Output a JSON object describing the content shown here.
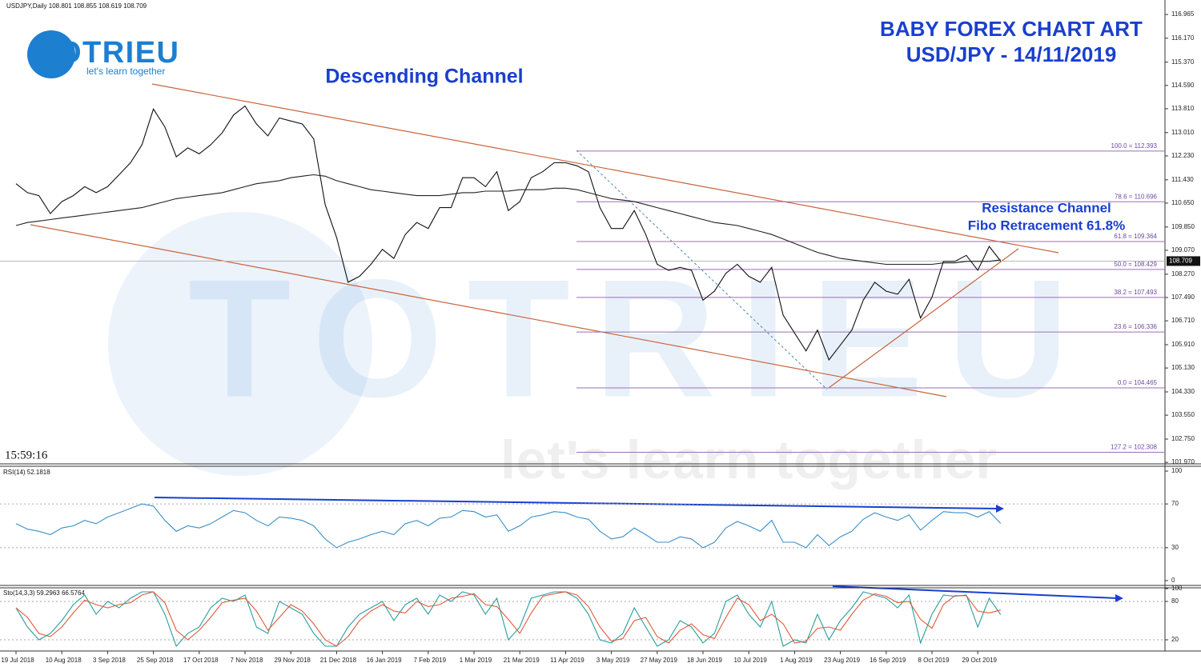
{
  "chart_data": [
    {
      "type": "line",
      "header": "USDJPY,Daily  108.801 108.855 108.619 108.709",
      "clock": "15:59:16",
      "title": "BABY FOREX CHART ART",
      "subtitle": "USD/JPY - 14/11/2019",
      "annotations": [
        "Descending Channel",
        "Resistance Channel",
        "Fibo Retracement 61.8%"
      ],
      "logo": {
        "brand": "TOTRIEU",
        "slogan": "let's learn together"
      },
      "watermark": {
        "brand": "TOTRIEU",
        "slogan": "let's learn together"
      },
      "categories": [
        "19 Jul 2018",
        null,
        null,
        null,
        "10 Aug 2018",
        null,
        null,
        null,
        "3 Sep 2018",
        null,
        null,
        null,
        "25 Sep 2018",
        null,
        null,
        null,
        "17 Oct 2018",
        null,
        null,
        null,
        "7 Nov 2018",
        null,
        null,
        null,
        "29 Nov 2018",
        null,
        null,
        null,
        "21 Dec 2018",
        null,
        null,
        null,
        "16 Jan 2019",
        null,
        null,
        null,
        "7 Feb 2019",
        null,
        null,
        null,
        "1 Mar 2019",
        null,
        null,
        null,
        "21 Mar 2019",
        null,
        null,
        null,
        "11 Apr 2019",
        null,
        null,
        null,
        "3 May 2019",
        null,
        null,
        null,
        "27 May 2019",
        null,
        null,
        null,
        "18 Jun 2019",
        null,
        null,
        null,
        "10 Jul 2019",
        null,
        null,
        null,
        "1 Aug 2019",
        null,
        null,
        null,
        "23 Aug 2019",
        null,
        null,
        null,
        "16 Sep 2019",
        null,
        null,
        null,
        "8 Oct 2019",
        null,
        null,
        null,
        "29 Oct 2019",
        null,
        null
      ],
      "series": [
        {
          "color": "#111111",
          "values": [
            111.3,
            111.0,
            110.9,
            110.3,
            110.7,
            110.9,
            111.2,
            111.0,
            111.2,
            111.6,
            112.0,
            112.6,
            113.8,
            113.2,
            112.2,
            112.5,
            112.3,
            112.6,
            113.0,
            113.6,
            113.9,
            113.3,
            112.9,
            113.5,
            113.4,
            113.3,
            112.8,
            110.6,
            109.5,
            108.0,
            108.2,
            108.6,
            109.1,
            108.8,
            109.6,
            110.0,
            109.8,
            110.5,
            110.5,
            111.5,
            111.5,
            111.2,
            111.7,
            110.4,
            110.7,
            111.5,
            111.7,
            112.0,
            112.0,
            111.9,
            111.7,
            110.5,
            109.8,
            109.8,
            110.4,
            109.6,
            108.6,
            108.4,
            108.5,
            108.4,
            107.4,
            107.7,
            108.3,
            108.6,
            108.2,
            108.0,
            108.5,
            106.9,
            106.3,
            105.7,
            106.4,
            105.4,
            105.9,
            106.4,
            107.4,
            108.0,
            107.7,
            107.6,
            108.1,
            106.8,
            107.5,
            108.7,
            108.7,
            108.9,
            108.4,
            109.2,
            108.709
          ]
        },
        {
          "color": "#222222",
          "values": [
            109.9,
            110.0,
            110.05,
            110.1,
            110.15,
            110.2,
            110.25,
            110.3,
            110.35,
            110.4,
            110.45,
            110.5,
            110.6,
            110.7,
            110.8,
            110.85,
            110.9,
            110.95,
            111.0,
            111.1,
            111.2,
            111.3,
            111.35,
            111.4,
            111.5,
            111.55,
            111.6,
            111.55,
            111.4,
            111.3,
            111.2,
            111.1,
            111.05,
            111.0,
            110.95,
            110.9,
            110.9,
            110.9,
            110.95,
            111.0,
            111.0,
            111.05,
            111.05,
            111.05,
            111.1,
            111.1,
            111.1,
            111.15,
            111.15,
            111.1,
            111.0,
            110.9,
            110.8,
            110.75,
            110.7,
            110.6,
            110.5,
            110.4,
            110.3,
            110.2,
            110.1,
            110.0,
            109.95,
            109.9,
            109.8,
            109.7,
            109.6,
            109.45,
            109.3,
            109.15,
            109.0,
            108.9,
            108.8,
            108.75,
            108.7,
            108.65,
            108.6,
            108.6,
            108.6,
            108.6,
            108.6,
            108.65,
            108.65,
            108.7,
            108.7,
            108.7,
            108.75
          ]
        }
      ],
      "last": 108.709,
      "fibo": [
        {
          "value": 112.393,
          "label": "100.0 = 112.393"
        },
        {
          "value": 110.696,
          "label": "78.6 = 110.696"
        },
        {
          "value": 109.364,
          "label": "61.8 = 109.364"
        },
        {
          "value": 108.429,
          "label": "50.0 = 108.429"
        },
        {
          "value": 107.493,
          "label": "38.2 = 107.493"
        },
        {
          "value": 106.336,
          "label": "23.6 = 106.336"
        },
        {
          "value": 104.465,
          "label": "0.0 = 104.465"
        },
        {
          "value": 102.308,
          "label": "127.2 = 102.308"
        }
      ],
      "ylim": [
        101.92,
        117.45
      ],
      "yticks": [
        116.965,
        {
          "value": 116.17,
          "label": "116.170"
        },
        {
          "value": 115.37,
          "label": "115.370"
        },
        {
          "value": 114.59,
          "label": "114.590"
        },
        {
          "value": 113.81,
          "label": "113.810"
        },
        {
          "value": 113.01,
          "label": "113.010"
        },
        {
          "value": 112.23,
          "label": "112.230"
        },
        {
          "value": 111.43,
          "label": "111.430"
        },
        {
          "value": 110.65,
          "label": "110.650"
        },
        {
          "value": 109.85,
          "label": "109.850"
        },
        {
          "value": 109.07,
          "label": "109.070"
        },
        {
          "value": 108.27,
          "label": "108.270"
        },
        {
          "value": 107.49,
          "label": "107.490"
        },
        {
          "value": 106.71,
          "label": "106.710"
        },
        {
          "value": 105.91,
          "label": "105.910"
        },
        {
          "value": 105.13,
          "label": "105.130"
        },
        {
          "value": 104.33,
          "label": "104.330"
        },
        {
          "value": 103.55,
          "label": "103.550"
        },
        {
          "value": 102.75,
          "label": "102.750"
        },
        {
          "value": 101.97,
          "label": "101.970"
        }
      ]
    },
    {
      "type": "line",
      "header": "RSI(14) 52.1818",
      "series": [
        {
          "color": "#3b8fc7",
          "values": [
            52,
            47,
            45,
            42,
            48,
            50,
            55,
            52,
            58,
            62,
            66,
            70,
            68,
            55,
            45,
            50,
            48,
            52,
            58,
            64,
            62,
            55,
            50,
            58,
            57,
            55,
            50,
            38,
            30,
            35,
            38,
            42,
            45,
            42,
            52,
            55,
            50,
            57,
            58,
            64,
            63,
            58,
            60,
            45,
            50,
            58,
            60,
            63,
            62,
            58,
            56,
            45,
            38,
            40,
            48,
            42,
            35,
            35,
            40,
            38,
            30,
            35,
            48,
            54,
            50,
            45,
            55,
            35,
            35,
            30,
            42,
            32,
            40,
            45,
            56,
            62,
            58,
            55,
            60,
            46,
            55,
            63,
            62,
            62,
            58,
            63,
            52.1818
          ]
        }
      ],
      "levels": [
        30,
        70
      ],
      "ylim": [
        -4.4,
        104.4
      ],
      "yticks": [
        0,
        30,
        70,
        100
      ]
    },
    {
      "type": "line",
      "header": "Sto(14,3,3) 59.2963 66.5764",
      "series": [
        {
          "color": "#2a9d9d",
          "values": [
            70,
            40,
            20,
            30,
            50,
            75,
            90,
            60,
            80,
            70,
            85,
            95,
            95,
            60,
            10,
            30,
            40,
            70,
            85,
            80,
            90,
            40,
            30,
            80,
            70,
            60,
            30,
            10,
            10,
            40,
            60,
            70,
            80,
            50,
            75,
            85,
            60,
            90,
            80,
            95,
            90,
            60,
            85,
            20,
            40,
            85,
            90,
            95,
            95,
            85,
            60,
            20,
            15,
            30,
            70,
            40,
            10,
            20,
            50,
            40,
            15,
            30,
            80,
            90,
            60,
            40,
            80,
            10,
            20,
            15,
            60,
            20,
            50,
            70,
            95,
            90,
            85,
            70,
            90,
            15,
            60,
            90,
            88,
            90,
            40,
            85,
            59.2963
          ]
        },
        {
          "color": "#e05a3a",
          "values": [
            70,
            55,
            30,
            25,
            40,
            62,
            82,
            75,
            70,
            75,
            78,
            90,
            95,
            78,
            35,
            20,
            35,
            55,
            78,
            82,
            85,
            65,
            35,
            55,
            75,
            65,
            45,
            20,
            10,
            25,
            50,
            65,
            75,
            65,
            62,
            80,
            72,
            75,
            85,
            88,
            92,
            75,
            72,
            52,
            30,
            62,
            88,
            92,
            95,
            90,
            72,
            40,
            18,
            22,
            50,
            55,
            25,
            15,
            35,
            45,
            28,
            22,
            55,
            85,
            75,
            50,
            60,
            45,
            15,
            18,
            38,
            40,
            35,
            60,
            82,
            92,
            88,
            78,
            80,
            52,
            38,
            75,
            89,
            89,
            65,
            62,
            66.5764
          ]
        }
      ],
      "levels": [
        20,
        80
      ],
      "ylim": [
        2.5,
        101.25
      ],
      "yticks": [
        20,
        80,
        100
      ]
    }
  ]
}
